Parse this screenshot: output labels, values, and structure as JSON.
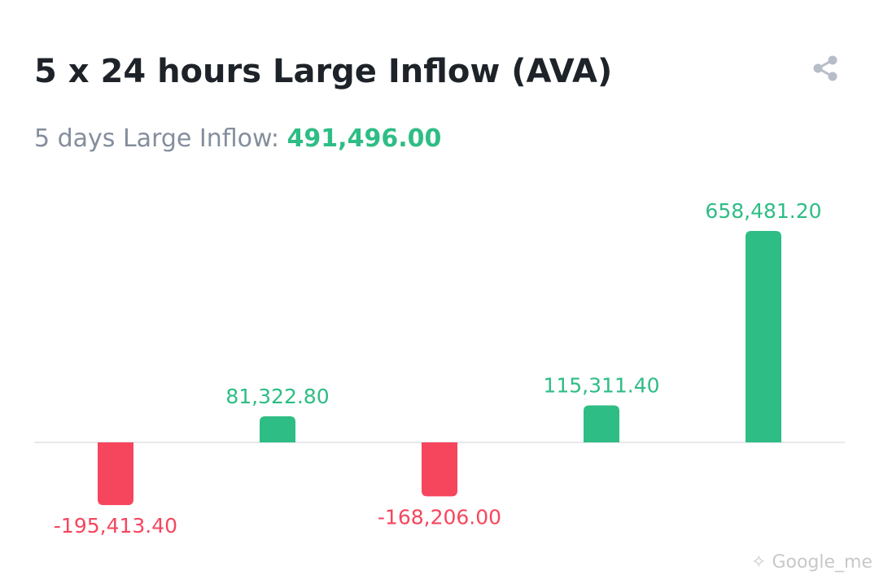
{
  "title": "5 x 24 hours Large Inflow (AVA)",
  "summary": {
    "label": "5 days Large Inflow: ",
    "value": "491,496.00"
  },
  "icons": {
    "share": "share-icon"
  },
  "colors": {
    "positive": "#2ebd85",
    "negative": "#f6465d",
    "baseline": "#e6e8ea"
  },
  "chart_data": {
    "type": "bar",
    "values": [
      -195413.4,
      81322.8,
      -168206.0,
      115311.4,
      658481.2
    ],
    "labels": [
      "-195,413.40",
      "81,322.80",
      "-168,206.00",
      "115,311.40",
      "658,481.20"
    ]
  },
  "watermark": "Google_me"
}
